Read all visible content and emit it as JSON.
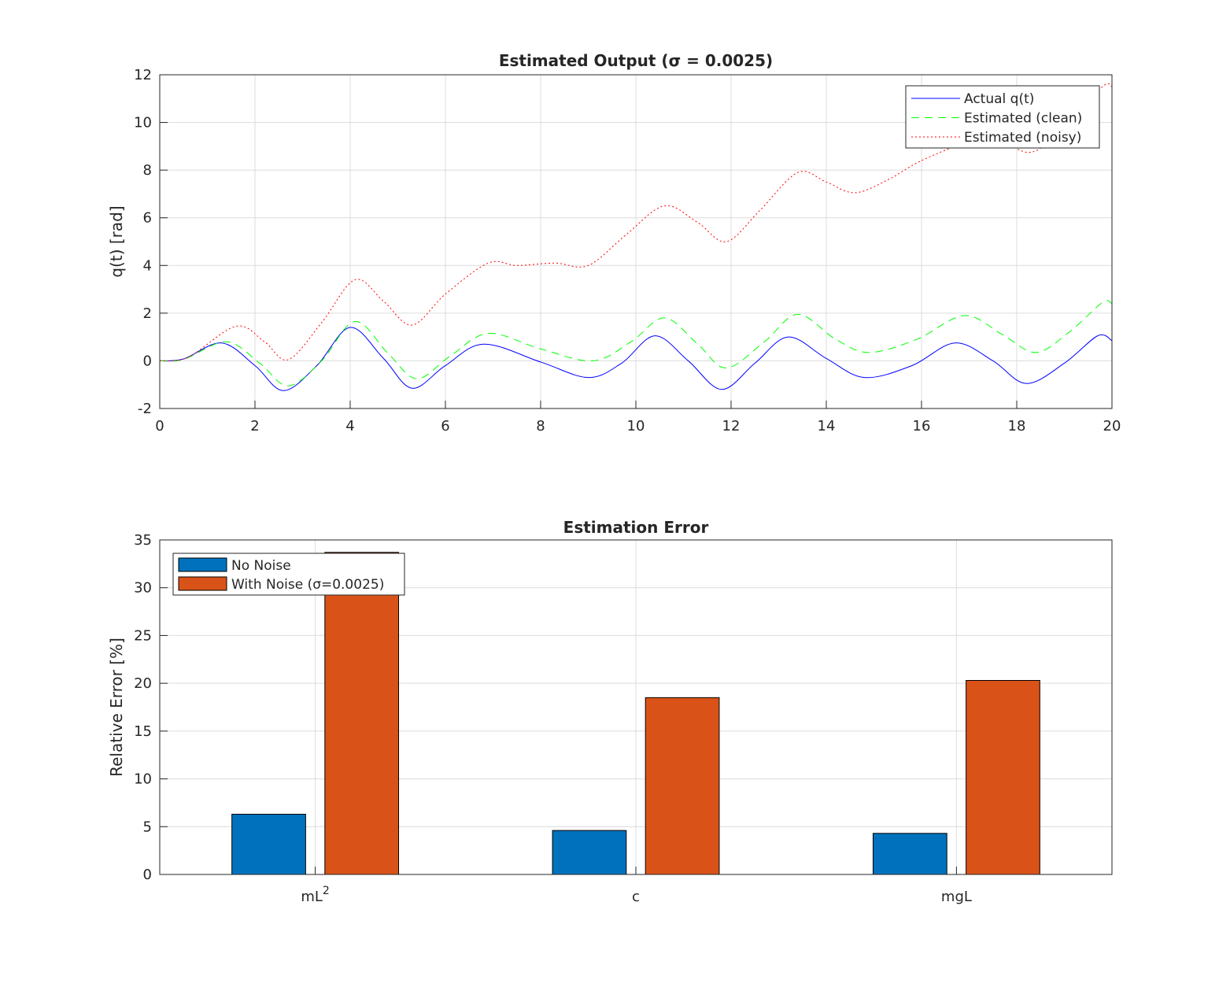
{
  "chart_data": [
    {
      "type": "line",
      "title": "Estimated Output (σ = 0.0025)",
      "xlabel": "",
      "ylabel": "q(t) [rad]",
      "xlim": [
        0,
        20
      ],
      "ylim": [
        -2,
        12
      ],
      "xticks": [
        0,
        2,
        4,
        6,
        8,
        10,
        12,
        14,
        16,
        18,
        20
      ],
      "yticks": [
        -2,
        0,
        2,
        4,
        6,
        8,
        10,
        12
      ],
      "grid": true,
      "legend_placement": "top-right",
      "series": [
        {
          "name": "Actual q(t)",
          "color": "#0000ff",
          "style": "solid",
          "x": [
            0,
            0.5,
            1.3,
            2.0,
            2.6,
            3.3,
            4.0,
            4.7,
            5.3,
            6.0,
            6.8,
            8.0,
            9.0,
            9.7,
            10.4,
            11.1,
            11.8,
            12.5,
            13.2,
            14.0,
            14.8,
            15.8,
            16.7,
            17.5,
            18.2,
            19.0,
            19.7,
            20
          ],
          "y": [
            0,
            0.08,
            0.75,
            -0.2,
            -1.25,
            -0.2,
            1.4,
            0.1,
            -1.15,
            -0.2,
            0.7,
            -0.05,
            -0.7,
            -0.1,
            1.05,
            0.0,
            -1.2,
            -0.1,
            1.0,
            0.1,
            -0.7,
            -0.2,
            0.75,
            0.0,
            -0.95,
            -0.1,
            1.05,
            0.85
          ]
        },
        {
          "name": "Estimated (clean)",
          "color": "#00ff00",
          "style": "dashed",
          "x": [
            0,
            0.5,
            1.4,
            2.1,
            2.7,
            3.4,
            4.1,
            4.8,
            5.4,
            6.1,
            6.9,
            8.0,
            9.1,
            9.9,
            10.6,
            11.3,
            11.9,
            12.7,
            13.4,
            14.2,
            14.9,
            15.9,
            16.9,
            17.7,
            18.4,
            19.1,
            19.8,
            20
          ],
          "y": [
            0,
            0.06,
            0.8,
            -0.1,
            -1.05,
            0.0,
            1.65,
            0.3,
            -0.75,
            0.2,
            1.15,
            0.5,
            0.0,
            0.8,
            1.8,
            0.7,
            -0.3,
            0.8,
            1.95,
            0.9,
            0.35,
            0.9,
            1.9,
            1.1,
            0.35,
            1.2,
            2.45,
            2.4
          ]
        },
        {
          "name": "Estimated (noisy)",
          "color": "#ff0000",
          "style": "dotted",
          "x": [
            0,
            0.6,
            1.6,
            2.2,
            2.7,
            3.4,
            4.1,
            4.7,
            5.3,
            6.0,
            6.9,
            7.5,
            8.3,
            9.0,
            9.8,
            10.6,
            11.3,
            11.9,
            12.6,
            13.4,
            14.0,
            14.6,
            15.3,
            16.0,
            17.0,
            17.6,
            18.3,
            19.0,
            19.8,
            20
          ],
          "y": [
            0,
            0.15,
            1.45,
            0.8,
            0.05,
            1.6,
            3.4,
            2.5,
            1.5,
            2.8,
            4.1,
            4.0,
            4.1,
            4.0,
            5.3,
            6.5,
            5.8,
            5.0,
            6.3,
            7.9,
            7.5,
            7.05,
            7.6,
            8.4,
            9.2,
            9.3,
            8.75,
            9.8,
            11.5,
            11.5
          ]
        }
      ]
    },
    {
      "type": "bar",
      "title": "Estimation Error",
      "xlabel": "",
      "ylabel": "Relative Error [%]",
      "categories": [
        "mL",
        "c",
        "mgL"
      ],
      "category_superscripts": [
        "2",
        "",
        ""
      ],
      "ylim": [
        0,
        35
      ],
      "yticks": [
        0,
        5,
        10,
        15,
        20,
        25,
        30,
        35
      ],
      "grid": true,
      "legend_placement": "top-left",
      "series": [
        {
          "name": "No Noise",
          "color": "#0072bd",
          "values": [
            6.3,
            4.6,
            4.3
          ]
        },
        {
          "name": "With Noise (σ=0.0025)",
          "color": "#d95319",
          "values": [
            33.7,
            18.5,
            20.3
          ]
        }
      ]
    }
  ]
}
